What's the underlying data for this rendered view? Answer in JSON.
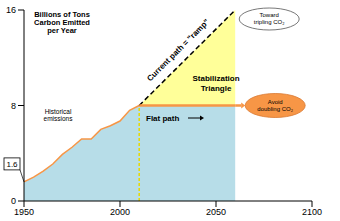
{
  "chart_data": {
    "type": "area",
    "y_label": "Billions of Tons Carbon Emitted per Year",
    "xlim": [
      1950,
      2100
    ],
    "xticks": [
      1950,
      2000,
      2050,
      2100
    ],
    "ylim": [
      0,
      16
    ],
    "yticks": [
      0,
      8,
      16
    ],
    "grid": false,
    "series": [
      {
        "name": "Historical emissions",
        "color": "#f79646",
        "x": [
          1950,
          1955,
          1960,
          1965,
          1970,
          1975,
          1980,
          1985,
          1990,
          1995,
          2000,
          2005,
          2010
        ],
        "values": [
          1.6,
          2.0,
          2.5,
          3.1,
          3.9,
          4.5,
          5.2,
          5.2,
          6.0,
          6.3,
          6.7,
          7.6,
          8.0
        ]
      },
      {
        "name": "Current path = \"ramp\"",
        "color": "#000000",
        "line_style": "dashed",
        "x": [
          2010,
          2060
        ],
        "values": [
          8,
          16
        ]
      },
      {
        "name": "Flat path",
        "color": "#f79646",
        "x": [
          2010,
          2060
        ],
        "values": [
          8,
          8
        ]
      }
    ],
    "annotations": [
      "Stabilization Triangle",
      "Toward tripling CO₂",
      "Avoid doubling CO₂"
    ]
  }
}
